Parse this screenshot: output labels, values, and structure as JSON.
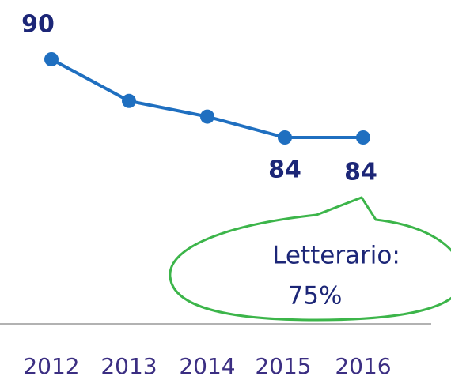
{
  "chart_data": {
    "type": "line",
    "categories": [
      "2012",
      "2013",
      "2014",
      "2015",
      "2016"
    ],
    "values": [
      90,
      86.8,
      85.6,
      84,
      84
    ],
    "show_value_label": [
      true,
      false,
      false,
      true,
      true
    ],
    "color": "#1f6fc0",
    "ylim": [
      84,
      90
    ],
    "annotation": {
      "lines": [
        "Letterario:",
        "75%"
      ],
      "color": "#3cb54a"
    }
  }
}
